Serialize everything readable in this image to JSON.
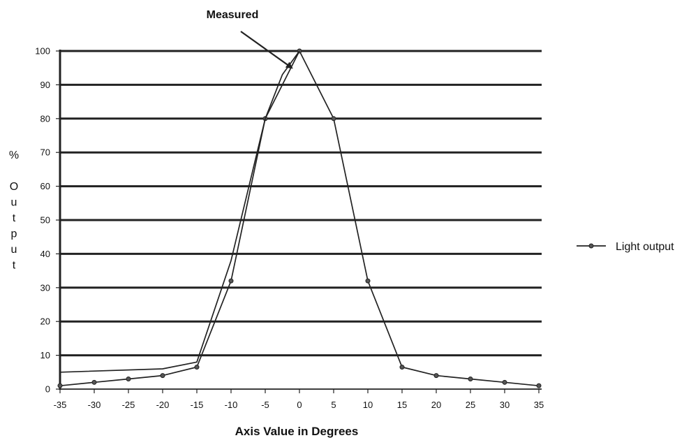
{
  "chart_data": {
    "type": "line",
    "title": "",
    "xlabel": "Axis Value in Degrees",
    "ylabel": "% Output",
    "xlim": [
      -35,
      35
    ],
    "ylim": [
      0,
      100
    ],
    "x_ticks": [
      -35,
      -30,
      -25,
      -20,
      -15,
      -10,
      -5,
      0,
      5,
      10,
      15,
      20,
      25,
      30,
      35
    ],
    "y_ticks": [
      0,
      10,
      20,
      30,
      40,
      50,
      60,
      70,
      80,
      90,
      100
    ],
    "grid": "horizontal",
    "legend_position": "right",
    "series": [
      {
        "name": "Light output",
        "x": [
          -35,
          -30,
          -25,
          -20,
          -15,
          -10,
          -5,
          0,
          5,
          10,
          15,
          20,
          25,
          30,
          35
        ],
        "values": [
          1,
          2,
          3,
          4,
          6.5,
          32,
          80,
          100,
          80,
          32,
          6.5,
          4,
          3,
          2,
          1
        ],
        "markers": true,
        "color": "#222222"
      },
      {
        "name": "",
        "x": [
          -35,
          -20,
          -15,
          -10,
          -5,
          -2.5,
          0
        ],
        "values": [
          5,
          6,
          8,
          38,
          80,
          93,
          100
        ],
        "markers": false,
        "color": "#222222"
      }
    ],
    "annotations": [
      {
        "text": "Measured",
        "points_to": {
          "x": -0.7,
          "y": 95
        }
      }
    ]
  }
}
